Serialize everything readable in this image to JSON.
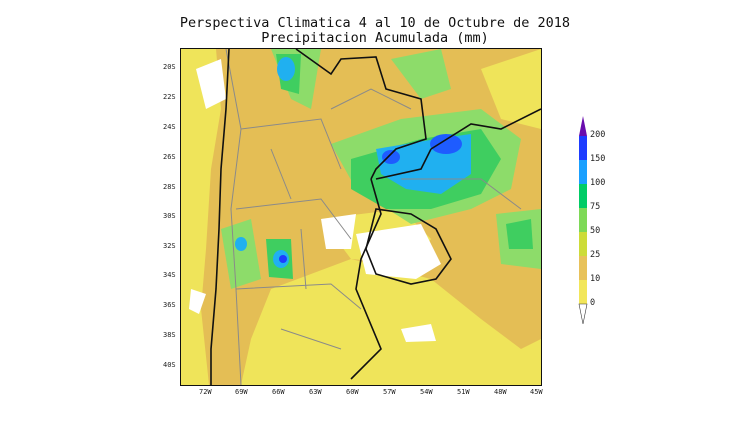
{
  "title": {
    "line1": "Perspectiva Climatica 4 al 10 de Octubre de 2018",
    "line2": "Precipitacion Acumulada (mm)"
  },
  "map": {
    "lat_labels": [
      "20S",
      "22S",
      "24S",
      "26S",
      "28S",
      "30S",
      "32S",
      "34S",
      "36S",
      "38S",
      "40S"
    ],
    "lon_labels": [
      "72W",
      "69W",
      "66W",
      "63W",
      "60W",
      "57W",
      "54W",
      "51W",
      "48W",
      "45W"
    ]
  },
  "legend": {
    "labels": [
      "200",
      "150",
      "100",
      "75",
      "50",
      "25",
      "10",
      "0"
    ],
    "colors": [
      "#6a0dad",
      "#1e3cff",
      "#1aa0ff",
      "#00cc66",
      "#7ed957",
      "#cddc39",
      "#e8c25a",
      "#f2e65a"
    ]
  },
  "colors": {
    "ocean_base": "#e3be52",
    "dry_yellow": "#f0e55a",
    "green": "#4fd25f",
    "border": "#111111",
    "province_lines": "#8a8a8a"
  }
}
